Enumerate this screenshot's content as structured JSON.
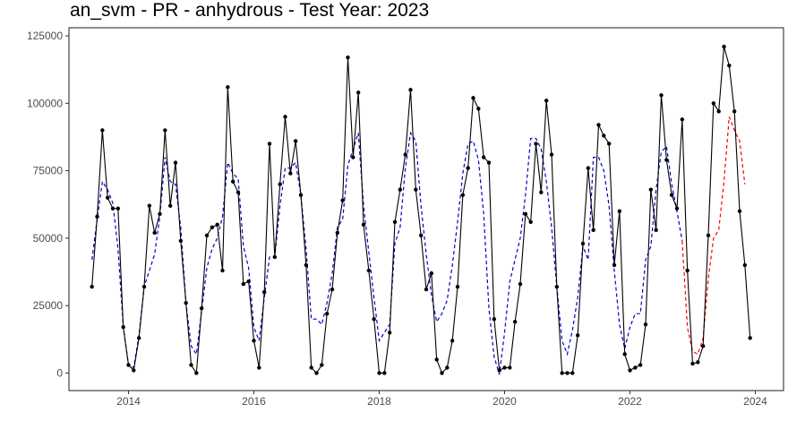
{
  "chart_data": {
    "type": "line",
    "title": "an_svm - PR - anhydrous - Test Year: 2023",
    "xlabel": "",
    "ylabel": "",
    "xlim": [
      2013.05,
      2024.45
    ],
    "ylim": [
      -6500,
      128000
    ],
    "x_ticks": [
      2014,
      2016,
      2018,
      2020,
      2022,
      2024
    ],
    "x_tick_labels": [
      "2014",
      "2016",
      "2018",
      "2020",
      "2022",
      "2024"
    ],
    "y_ticks": [
      0,
      25000,
      50000,
      75000,
      100000,
      125000
    ],
    "y_tick_labels": [
      "0",
      "25000",
      "50000",
      "75000",
      "100000",
      "125000"
    ],
    "grid": false,
    "legend": "none",
    "start_year": 2013,
    "start_month": 6,
    "series": [
      {
        "role": "actual",
        "color": "#000000",
        "style": "solid",
        "markers": true,
        "values": [
          32000,
          58000,
          90000,
          65000,
          61000,
          61000,
          17000,
          3000,
          1000,
          13000,
          32000,
          62000,
          52000,
          59000,
          90000,
          62000,
          78000,
          49000,
          26000,
          3000,
          0,
          24000,
          51000,
          54000,
          55000,
          38000,
          106000,
          71000,
          67000,
          33000,
          34000,
          12000,
          2000,
          30000,
          85000,
          43000,
          70000,
          95000,
          74000,
          86000,
          66000,
          40000,
          2000,
          0,
          3000,
          22000,
          31000,
          52000,
          64000,
          117000,
          80000,
          104000,
          55000,
          38000,
          20000,
          0,
          0,
          15000,
          56000,
          68000,
          81000,
          105000,
          68000,
          51000,
          31000,
          37000,
          5000,
          0,
          2000,
          12000,
          32000,
          66000,
          76000,
          102000,
          98000,
          80000,
          78000,
          20000,
          1000,
          2000,
          2000,
          19000,
          33000,
          59000,
          56000,
          85000,
          67000,
          101000,
          81000,
          32000,
          0,
          0,
          0,
          14000,
          48000,
          76000,
          53000,
          92000,
          88000,
          85000,
          40000,
          60000,
          7000,
          1000,
          2000,
          3000,
          18000,
          68000,
          53000,
          103000,
          79000,
          66000,
          61000,
          94000,
          38000,
          3500,
          4000,
          10000,
          51000,
          100000,
          97000,
          121000,
          114000,
          97000,
          60000,
          40000,
          13000
        ]
      },
      {
        "role": "fitted",
        "color": "#0000cc",
        "style": "dashed",
        "markers": false,
        "values": [
          42000,
          57000,
          71000,
          68000,
          63000,
          46000,
          17000,
          3000,
          2000,
          14000,
          32000,
          38000,
          44000,
          58000,
          80000,
          71000,
          70000,
          54000,
          26000,
          10000,
          7000,
          23000,
          39000,
          46000,
          50000,
          58000,
          78000,
          74000,
          72000,
          47000,
          39000,
          17000,
          12000,
          28000,
          43000,
          43000,
          62000,
          76000,
          76000,
          78000,
          66000,
          46000,
          20000,
          20000,
          18000,
          26000,
          37000,
          54000,
          57000,
          77000,
          83000,
          89000,
          62000,
          45000,
          28000,
          12000,
          15000,
          18000,
          48000,
          54000,
          76000,
          89000,
          86000,
          62000,
          44000,
          29000,
          19000,
          22000,
          27000,
          40000,
          56000,
          74000,
          85000,
          86000,
          79000,
          59000,
          24000,
          6000,
          -500,
          15000,
          34000,
          42000,
          50000,
          66000,
          87000,
          87000,
          83000,
          71000,
          54000,
          32000,
          12000,
          7000,
          16000,
          28000,
          47000,
          42000,
          80000,
          80000,
          75000,
          62000,
          38000,
          18000,
          9000,
          17000,
          22000,
          22000,
          42000,
          47000,
          68000,
          82000,
          84000,
          70000,
          60000,
          49000
        ]
      },
      {
        "role": "forecast",
        "color": "#ff0000",
        "style": "dashed",
        "markers": false,
        "start_index": 113,
        "values": [
          49000,
          17000,
          8000,
          7000,
          13000,
          35000,
          50000,
          53000,
          71000,
          95000,
          90000,
          86000,
          70000
        ]
      }
    ]
  },
  "colors": {
    "axis_frame": "#333333",
    "tick_text": "#4d4d4d"
  }
}
